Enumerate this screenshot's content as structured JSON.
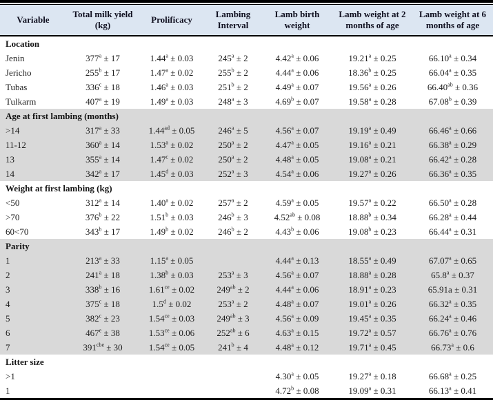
{
  "colors": {
    "header_bg": "#dce6f2",
    "shaded_bg": "#d9d9d9",
    "rule": "#000000"
  },
  "table": {
    "columns": [
      "Variable",
      "Total milk yield (kg)",
      "Prolificacy",
      "Lambing Interval",
      "Lamb birth weight",
      "Lamb weight at 2 months of age",
      "Lamb weight at 6 months of age"
    ],
    "sections": [
      {
        "title": "Location",
        "shaded": false,
        "rows": [
          {
            "label": "Jenin",
            "values": [
              "377^a ± 17",
              "1.44^a ± 0.03",
              "245^a ± 2",
              "4.42^a ± 0.06",
              "19.21^a ± 0.25",
              "66.10^a ± 0.34"
            ]
          },
          {
            "label": "Jericho",
            "values": [
              "255^b ± 17",
              "1.47^a ± 0.02",
              "255^b ± 2",
              "4.44^a ± 0.06",
              "18.36^b ± 0.25",
              "66.04^a ± 0.35"
            ]
          },
          {
            "label": "Tubas",
            "values": [
              "336^c ± 18",
              "1.46^a ± 0.03",
              "251^b ± 2",
              "4.49^a ± 0.07",
              "19.56^a ± 0.26",
              "66.40^ab ± 0.36"
            ]
          },
          {
            "label": "Tulkarm",
            "values": [
              "407^a ± 19",
              "1.49^a ± 0.03",
              "248^a ± 3",
              "4.69^b ± 0.07",
              "19.58^a ± 0.28",
              "67.08^b ± 0.39"
            ]
          }
        ]
      },
      {
        "title": "Age at first lambing (months)",
        "shaded": true,
        "rows": [
          {
            "label": ">14",
            "values": [
              "317^a ± 33",
              "1.44^ad ± 0.05",
              "246^a ± 5",
              "4.56^a ± 0.07",
              "19.19^a ± 0.49",
              "66.46^a ± 0.66"
            ]
          },
          {
            "label": "11-12",
            "values": [
              "360^a ± 14",
              "1.53^a ± 0.02",
              "250^a ± 2",
              "4.47^a ± 0.05",
              "19.16^a ± 0.21",
              "66.38^a ± 0.29"
            ]
          },
          {
            "label": "13",
            "values": [
              "355^a ± 14",
              "1.47^c ± 0.02",
              "250^a ± 2",
              "4.48^a ± 0.05",
              "19.08^a ± 0.21",
              "66.42^a ± 0.28"
            ]
          },
          {
            "label": "14",
            "values": [
              "342^a ± 17",
              "1.45^d ± 0.03",
              "252^a ± 3",
              "4.54^a ± 0.06",
              "19.27^a ± 0.26",
              "66.36^a ± 0.35"
            ]
          }
        ]
      },
      {
        "title": "Weight at first lambing (kg)",
        "shaded": false,
        "rows": [
          {
            "label": "<50",
            "values": [
              "312^a ± 14",
              "1.40^a ± 0.02",
              "257^a ± 2",
              "4.59^a ± 0.05",
              "19.57^a ± 0.22",
              "66.50^a ± 0.28"
            ]
          },
          {
            "label": ">70",
            "values": [
              "376^b ± 22",
              "1.51^b ± 0.03",
              "246^b ± 3",
              "4.52^ab ± 0.08",
              "18.88^b ± 0.34",
              "66.28^a ± 0.44"
            ]
          },
          {
            "label": "60<70",
            "values": [
              "343^b ± 17",
              "1.49^b ± 0.02",
              "246^b ± 2",
              "4.43^b ± 0.06",
              "19.08^b ± 0.23",
              "66.44^a ± 0.31"
            ]
          }
        ]
      },
      {
        "title": "Parity",
        "shaded": true,
        "rows": [
          {
            "label": "1",
            "values": [
              "213^a ± 33",
              "1.15^a ± 0.05",
              "",
              "4.44^a ± 0.13",
              "18.55^a ± 0.49",
              "67.07^a ± 0.65"
            ]
          },
          {
            "label": "2",
            "values": [
              "241^a ± 18",
              "1.38^b ± 0.03",
              "253^a ± 3",
              "4.56^a ± 0.07",
              "18.88^a ± 0.28",
              "65.8^a ± 0.37"
            ]
          },
          {
            "label": "3",
            "values": [
              "338^b ± 16",
              "1.61^ce ± 0.02",
              "249^ab ± 2",
              "4.44^a ± 0.06",
              "18.91^a ± 0.23",
              "65.91a ± 0.31"
            ]
          },
          {
            "label": "4",
            "values": [
              "375^c ± 18",
              "1.5^d ± 0.02",
              "253^a ± 2",
              "4.48^a ± 0.07",
              "19.01^a ± 0.26",
              "66.32^a ± 0.35"
            ]
          },
          {
            "label": "5",
            "values": [
              "382^c ± 23",
              "1.54^ce ± 0.03",
              "249^ab ± 3",
              "4.56^a ± 0.09",
              "19.45^a ± 0.35",
              "66.24^a ± 0.46"
            ]
          },
          {
            "label": "6",
            "values": [
              "467^e ± 38",
              "1.53^ce ± 0.06",
              "252^ab ± 6",
              "4.63^a ± 0.15",
              "19.72^a ± 0.57",
              "66.76^a ± 0.76"
            ]
          },
          {
            "label": "7",
            "values": [
              "391^cbe ± 30",
              "1.54^ce ± 0.05",
              "241^b ± 4",
              "4.48^a ± 0.12",
              "19.71^a ± 0.45",
              "66.73^a ± 0.6"
            ]
          }
        ]
      },
      {
        "title": "Litter size",
        "shaded": false,
        "rows": [
          {
            "label": ">1",
            "values": [
              "",
              "",
              "",
              "4.30^a ± 0.05",
              "19.27^a ± 0.18",
              "66.68^a ± 0.25"
            ]
          },
          {
            "label": "1",
            "values": [
              "",
              "",
              "",
              "4.72^b ± 0.08",
              "19.09^a ± 0.31",
              "66.13^a ± 0.41"
            ]
          }
        ]
      }
    ]
  }
}
